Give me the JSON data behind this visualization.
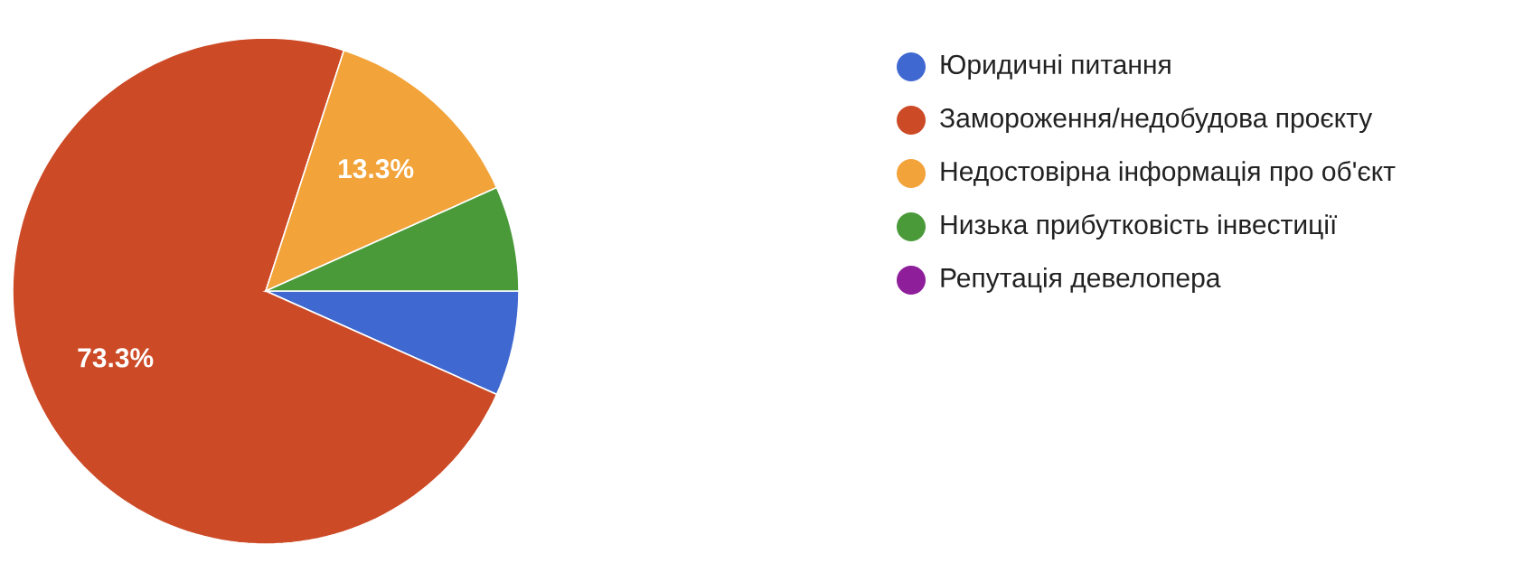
{
  "chart_data": {
    "type": "pie",
    "categories": [
      "Юридичні питання",
      "Замороження/недобудова проєкту",
      "Недостовірна інформація про об'єкт",
      "Низька прибутковість інвестиції",
      "Репутація девелопера"
    ],
    "values": [
      6.7,
      73.3,
      13.3,
      6.7,
      0
    ],
    "colors": [
      "#3f68d0",
      "#cc4a26",
      "#f2a33a",
      "#4a9a3a",
      "#8e1e9a"
    ],
    "value_labels": [
      null,
      "73.3%",
      "13.3%",
      null,
      null
    ],
    "legend": "right"
  }
}
